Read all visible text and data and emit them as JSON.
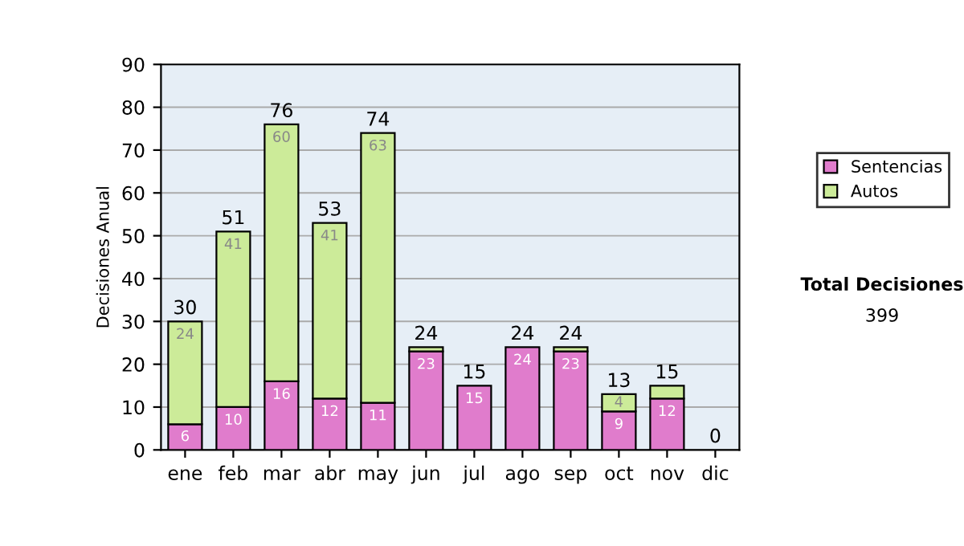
{
  "chart_data": {
    "type": "bar",
    "stacked": true,
    "categories": [
      "ene",
      "feb",
      "mar",
      "abr",
      "may",
      "jun",
      "jul",
      "ago",
      "sep",
      "oct",
      "nov",
      "dic"
    ],
    "ylabel": "Decisiones Anual",
    "series": [
      {
        "name": "Sentencias",
        "color": "#e07ccc",
        "values": [
          6,
          10,
          16,
          12,
          11,
          23,
          15,
          24,
          23,
          9,
          12,
          0
        ],
        "value_labels": [
          "6",
          "10",
          "16",
          "12",
          "11",
          "23",
          "15",
          "24",
          "23",
          "9",
          "12",
          null
        ]
      },
      {
        "name": "Autos",
        "color": "#cceb99",
        "values": [
          24,
          41,
          60,
          41,
          63,
          1,
          0,
          0,
          1,
          4,
          3,
          0
        ],
        "value_labels": [
          "24",
          "41",
          "60",
          "41",
          "63",
          null,
          null,
          null,
          null,
          "4",
          null,
          null
        ]
      }
    ],
    "totals": [
      "30",
      "51",
      "76",
      "53",
      "74",
      "24",
      "15",
      "24",
      "24",
      "13",
      "15",
      "0"
    ],
    "ylim": [
      0,
      90
    ],
    "yticks": [
      0,
      10,
      20,
      30,
      40,
      50,
      60,
      70,
      80,
      90
    ],
    "grid": "y",
    "legend": "right",
    "annotations": [
      "Total Decisiones",
      "399"
    ]
  }
}
